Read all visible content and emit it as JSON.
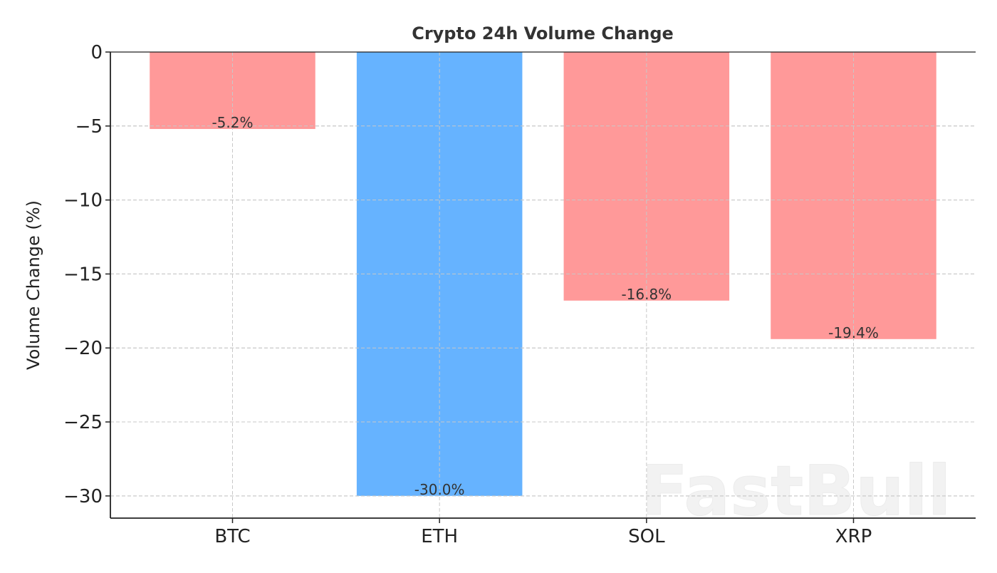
{
  "chart_data": {
    "type": "bar",
    "title": "Crypto 24h Volume Change",
    "xlabel": "",
    "ylabel": "Volume Change (%)",
    "categories": [
      "BTC",
      "ETH",
      "SOL",
      "XRP"
    ],
    "values": [
      -5.2,
      -30.0,
      -16.8,
      -19.4
    ],
    "data_labels": [
      "-5.2%",
      "-30.0%",
      "-16.8%",
      "-19.4%"
    ],
    "bar_colors": [
      "#ff9999",
      "#66b3ff",
      "#ff9999",
      "#ff9999"
    ],
    "ylim": [
      -31.5,
      0
    ],
    "yticks": [
      0,
      -5,
      -10,
      -15,
      -20,
      -25,
      -30
    ],
    "ytick_labels": [
      "0",
      "−5",
      "−10",
      "−15",
      "−20",
      "−25",
      "−30"
    ],
    "grid": true,
    "legend": "none"
  },
  "watermark": "FastBull"
}
